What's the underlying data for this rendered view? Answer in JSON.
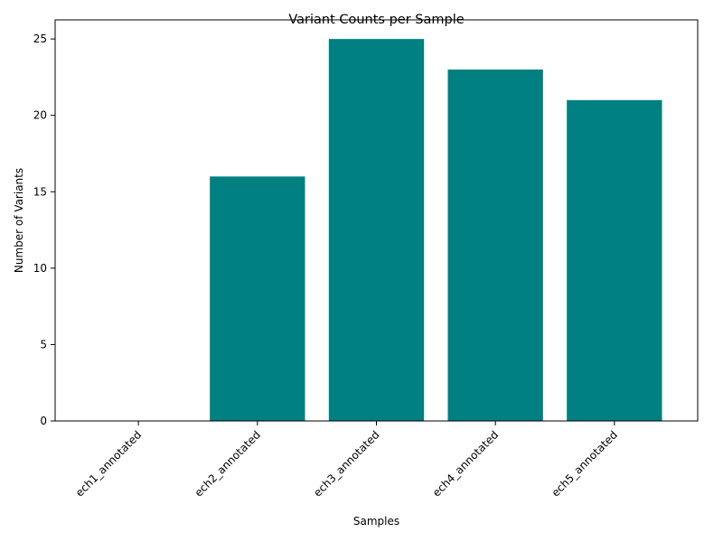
{
  "chart_data": {
    "type": "bar",
    "title": "Variant Counts per Sample",
    "xlabel": "Samples",
    "ylabel": "Number of Variants",
    "categories": [
      "ech1_annotated",
      "ech2_annotated",
      "ech3_annotated",
      "ech4_annotated",
      "ech5_annotated"
    ],
    "values": [
      0,
      16,
      25,
      23,
      21
    ],
    "ylim": [
      0,
      26.25
    ],
    "yticks": [
      0,
      5,
      10,
      15,
      20,
      25
    ],
    "bar_color": "#008080",
    "grid": false,
    "xtick_rotation": 45
  }
}
